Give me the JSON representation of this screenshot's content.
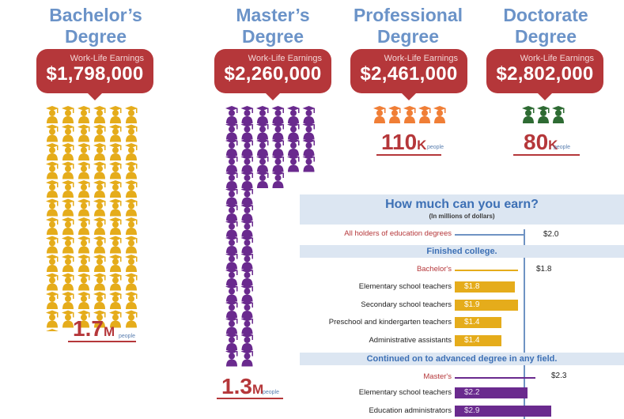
{
  "degrees": [
    {
      "title_line1": "Bachelor’s",
      "title_line2": "Degree",
      "earn_label": "Work-Life Earnings",
      "earnings": "$1,798,000",
      "count_num": "1.7",
      "count_unit": "M",
      "count_sub": "people",
      "icon_color": "#e5ac1b"
    },
    {
      "title_line1": "Master’s",
      "title_line2": "Degree",
      "earn_label": "Work-Life Earnings",
      "earnings": "$2,260,000",
      "count_num": "1.3",
      "count_unit": "M",
      "count_sub": "people",
      "icon_color": "#6a2a8e"
    },
    {
      "title_line1": "Professional",
      "title_line2": "Degree",
      "earn_label": "Work-Life Earnings",
      "earnings": "$2,461,000",
      "count_num": "110",
      "count_unit": "K",
      "count_sub": "people",
      "icon_color": "#f07e36"
    },
    {
      "title_line1": "Doctorate",
      "title_line2": "Degree",
      "earn_label": "Work-Life Earnings",
      "earnings": "$2,802,000",
      "count_num": "80",
      "count_unit": "K",
      "count_sub": "people",
      "icon_color": "#2e6b33"
    }
  ],
  "icon_counts": {
    "bachelors": 73,
    "masters": 65,
    "professional": 5,
    "doctorate": 3
  },
  "panel": {
    "title": "How much can you earn?",
    "subtitle": "(In millions of dollars)",
    "all_label": "All holders of education degrees",
    "all_value": "$2.0",
    "band1": "Finished college.",
    "bachelors_label": "Bachelor's",
    "bachelors_value": "$1.8",
    "band2": "Continued on to advanced degree in any field.",
    "masters_label": "Master's",
    "masters_value": "$2.3",
    "rows_college": [
      {
        "label": "Elementary school teachers",
        "value": "$1.8",
        "amount": 1.8
      },
      {
        "label": "Secondary school teachers",
        "value": "$1.9",
        "amount": 1.9
      },
      {
        "label": "Preschool and kindergarten teachers",
        "value": "$1.4",
        "amount": 1.4
      },
      {
        "label": "Administrative assistants",
        "value": "$1.4",
        "amount": 1.4
      }
    ],
    "rows_advanced": [
      {
        "label": "Elementary school teachers",
        "value": "$2.2",
        "amount": 2.2
      },
      {
        "label": "Education administrators",
        "value": "$2.9",
        "amount": 2.9
      }
    ]
  },
  "colors": {
    "title_blue": "#6b93c8",
    "bubble_red": "#b5373a",
    "gold": "#e5ac1b",
    "purple": "#6a2a8e",
    "orange": "#f07e36",
    "green": "#2e6b33",
    "panel_band": "#dce6f2"
  }
}
